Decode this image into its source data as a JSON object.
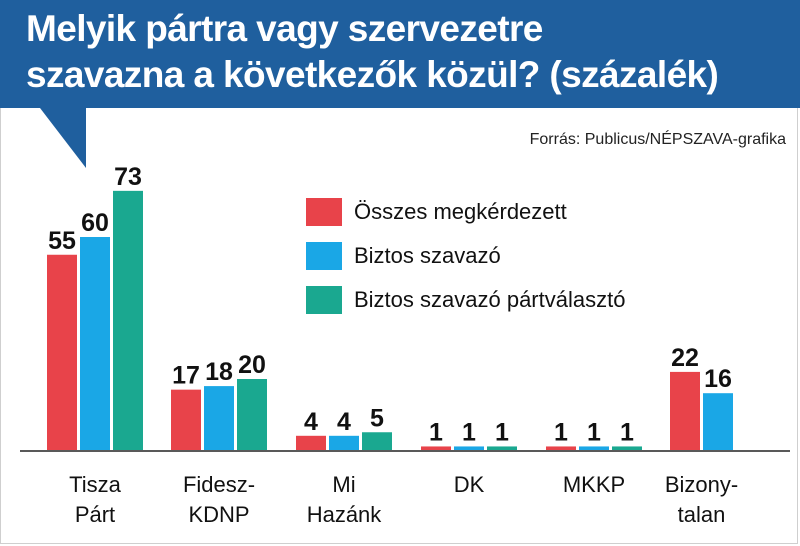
{
  "header": {
    "title_line1": "Melyik pártra vagy szervezetre",
    "title_line2": "szavazna a következők közül? (százalék)"
  },
  "source": "Forrás: Publicus/NÉPSZAVA-grafika",
  "colors": {
    "header_bg": "#1f5f9e",
    "series": [
      "#e8434a",
      "#1aa7e6",
      "#1aa890"
    ]
  },
  "chart_data": {
    "type": "bar",
    "title": "Melyik pártra vagy szervezetre szavazna a következők közül? (százalék)",
    "categories": [
      [
        "Tisza",
        "Párt"
      ],
      [
        "Fidesz-",
        "KDNP"
      ],
      [
        "Mi",
        "Hazánk"
      ],
      [
        "DK"
      ],
      [
        "MKKP"
      ],
      [
        "Bizony-",
        "talan"
      ]
    ],
    "series": [
      {
        "name": "Összes megkérdezett",
        "values": [
          55,
          17,
          4,
          1,
          1,
          22
        ]
      },
      {
        "name": "Biztos szavazó",
        "values": [
          60,
          18,
          4,
          1,
          1,
          16
        ]
      },
      {
        "name": "Biztos szavazó pártválasztó",
        "values": [
          73,
          20,
          5,
          1,
          1,
          null
        ]
      }
    ],
    "ylim": [
      0,
      73
    ],
    "grid": false,
    "legend_position": "top-center"
  }
}
